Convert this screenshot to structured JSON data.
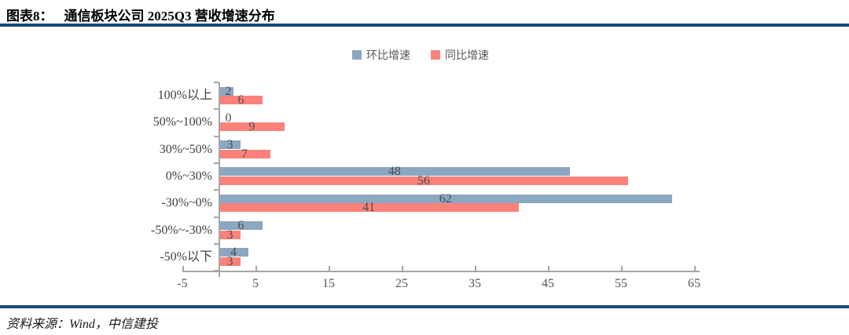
{
  "header": {
    "figure_label": "图表8：",
    "title": "通信板块公司 2025Q3 营收增速分布"
  },
  "footer": {
    "source": "资料来源：Wind，中信建投"
  },
  "colors": {
    "accent_rule": "#17497B",
    "series_qoq": "#8CA7C1",
    "series_yoy": "#FB817B",
    "axis": "#A6A6A6",
    "value_label": "#4D4D4D"
  },
  "chart_data": {
    "type": "bar",
    "orientation": "horizontal",
    "title": "通信板块公司 2025Q3 营收增速分布",
    "categories": [
      "100%以上",
      "50%~100%",
      "30%~50%",
      "0%~30%",
      "-30%~0%",
      "-50%~-30%",
      "-50%以下"
    ],
    "series": [
      {
        "name": "环比增速",
        "color": "#8CA7C1",
        "values": [
          2,
          0,
          3,
          48,
          62,
          6,
          4
        ]
      },
      {
        "name": "同比增速",
        "color": "#FB817B",
        "values": [
          6,
          9,
          7,
          56,
          41,
          3,
          3
        ]
      }
    ],
    "xlabel": "",
    "ylabel": "",
    "x_axis": {
      "min": -5,
      "max": 65,
      "tick_interval": 10,
      "tick_labels": [
        "-5",
        "5",
        "15",
        "25",
        "35",
        "45",
        "55",
        "65"
      ]
    },
    "grid": false,
    "legend_position": "top",
    "data_labels": true
  }
}
